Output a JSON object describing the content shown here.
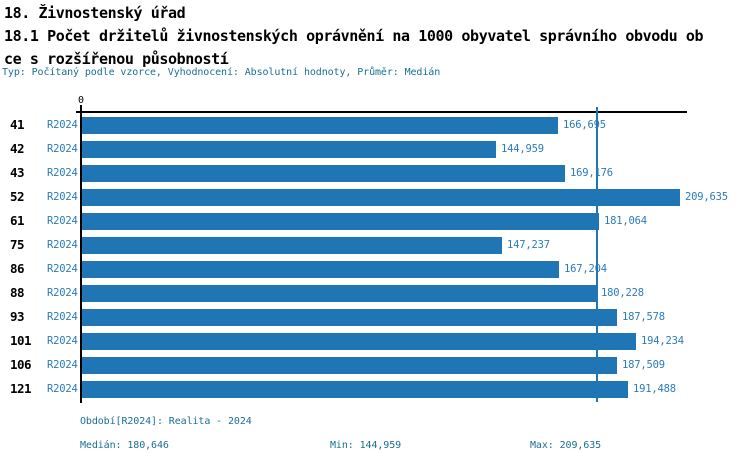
{
  "header": {
    "title": "18. Živnostenský úřad",
    "subtitle_line1": "18.1 Počet držitelů živnostenských oprávnění na 1000 obyvatel správního obvodu ob",
    "subtitle_line2": "ce s rozšířenou působností",
    "meta": "Typ: Počítaný podle vzorce, Vyhodnocení: Absolutní hodnoty, Průměr: Medián"
  },
  "chart_data": {
    "type": "bar",
    "orientation": "horizontal",
    "categories": [
      "41",
      "42",
      "43",
      "52",
      "61",
      "75",
      "86",
      "88",
      "93",
      "101",
      "106",
      "121"
    ],
    "series_label": "R2024",
    "values": [
      166695,
      144959,
      169176,
      209635,
      181064,
      147237,
      167204,
      180228,
      187578,
      194234,
      187509,
      191488
    ],
    "value_labels": [
      "166,695",
      "144,959",
      "169,176",
      "209,635",
      "181,064",
      "147,237",
      "167,204",
      "180,228",
      "187,578",
      "194,234",
      "187,509",
      "191,488"
    ],
    "axis_zero_label": "0",
    "xlim": [
      0,
      212000
    ],
    "grid": false,
    "legend_position": "none",
    "median": 180646,
    "min": 144959,
    "max": 209635,
    "bar_color": "#2075B4",
    "median_line_color": "#2075B4"
  },
  "footer": {
    "period": "Období[R2024]: Realita - 2024",
    "median": "Medián: 180,646",
    "min": "Min: 144,959",
    "max": "Max: 209,635"
  }
}
